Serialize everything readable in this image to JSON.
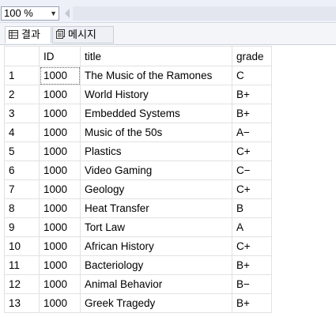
{
  "toolbar": {
    "zoom_value": "100 %"
  },
  "tabs": [
    {
      "label": "결과",
      "icon": "grid-icon"
    },
    {
      "label": "메시지",
      "icon": "message-icon"
    }
  ],
  "grid": {
    "columns": [
      "",
      "ID",
      "title",
      "grade"
    ],
    "rows": [
      {
        "n": "1",
        "id": "1000",
        "title": "The Music of the Ramones",
        "grade": "C"
      },
      {
        "n": "2",
        "id": "1000",
        "title": "World History",
        "grade": "B+"
      },
      {
        "n": "3",
        "id": "1000",
        "title": "Embedded Systems",
        "grade": "B+"
      },
      {
        "n": "4",
        "id": "1000",
        "title": "Music of the 50s",
        "grade": "A−"
      },
      {
        "n": "5",
        "id": "1000",
        "title": "Plastics",
        "grade": "C+"
      },
      {
        "n": "6",
        "id": "1000",
        "title": "Video Gaming",
        "grade": "C−"
      },
      {
        "n": "7",
        "id": "1000",
        "title": "Geology",
        "grade": "C+"
      },
      {
        "n": "8",
        "id": "1000",
        "title": "Heat Transfer",
        "grade": "B"
      },
      {
        "n": "9",
        "id": "1000",
        "title": "Tort Law",
        "grade": "A"
      },
      {
        "n": "10",
        "id": "1000",
        "title": "African History",
        "grade": "C+"
      },
      {
        "n": "11",
        "id": "1000",
        "title": "Bacteriology",
        "grade": "B+"
      },
      {
        "n": "12",
        "id": "1000",
        "title": "Animal Behavior",
        "grade": "B−"
      },
      {
        "n": "13",
        "id": "1000",
        "title": "Greek Tragedy",
        "grade": "B+"
      }
    ]
  }
}
